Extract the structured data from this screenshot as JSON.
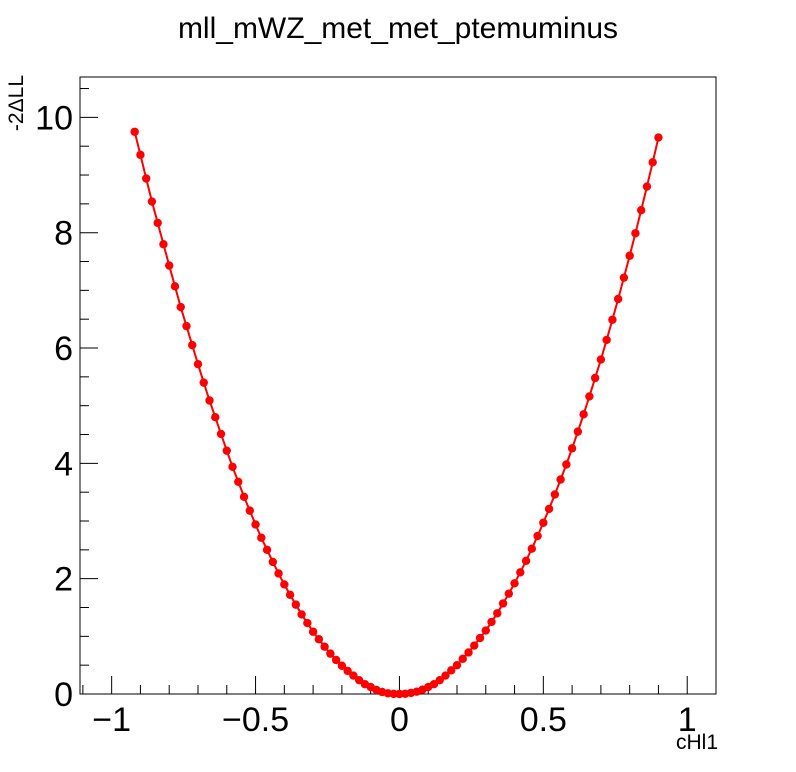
{
  "chart_data": {
    "type": "line",
    "title": "mll_mWZ_met_met_ptemuminus",
    "xlabel": "cHl1",
    "ylabel": "-2ΔLL",
    "xlim": [
      -1.11,
      1.1
    ],
    "ylim": [
      0,
      10.7
    ],
    "x_ticks": [
      {
        "value": -1,
        "label": "−1"
      },
      {
        "value": -0.5,
        "label": "−0.5"
      },
      {
        "value": 0,
        "label": "0"
      },
      {
        "value": 0.5,
        "label": "0.5"
      },
      {
        "value": 1,
        "label": "1"
      }
    ],
    "y_ticks": [
      {
        "value": 0,
        "label": "0"
      },
      {
        "value": 2,
        "label": "2"
      },
      {
        "value": 4,
        "label": "4"
      },
      {
        "value": 6,
        "label": "6"
      },
      {
        "value": 8,
        "label": "8"
      },
      {
        "value": 10,
        "label": "10"
      }
    ],
    "grid": false,
    "legend": "none",
    "series": [
      {
        "color": "#ff0000",
        "x": [
          -0.92,
          -0.9,
          -0.88,
          -0.86,
          -0.84,
          -0.82,
          -0.8,
          -0.78,
          -0.76,
          -0.74,
          -0.72,
          -0.7,
          -0.68,
          -0.66,
          -0.64,
          -0.62,
          -0.6,
          -0.58,
          -0.56,
          -0.54,
          -0.52,
          -0.5,
          -0.48,
          -0.46,
          -0.44,
          -0.42,
          -0.4,
          -0.38,
          -0.36,
          -0.34,
          -0.32,
          -0.3,
          -0.28,
          -0.26,
          -0.24,
          -0.22,
          -0.2,
          -0.18,
          -0.16,
          -0.14,
          -0.12,
          -0.1,
          -0.08,
          -0.06,
          -0.04,
          -0.02,
          0,
          0.02,
          0.04,
          0.06,
          0.08,
          0.1,
          0.12,
          0.14,
          0.16,
          0.18,
          0.2,
          0.22,
          0.24,
          0.26,
          0.28,
          0.3,
          0.32,
          0.34,
          0.36,
          0.38,
          0.4,
          0.42,
          0.44,
          0.46,
          0.48,
          0.5,
          0.52,
          0.54,
          0.56,
          0.58,
          0.6,
          0.62,
          0.64,
          0.66,
          0.68,
          0.7,
          0.72,
          0.74,
          0.76,
          0.78,
          0.8,
          0.82,
          0.84,
          0.86,
          0.88,
          0.9
        ],
        "y": [
          9.75,
          9.35,
          8.94,
          8.54,
          8.17,
          7.8,
          7.43,
          7.07,
          6.71,
          6.38,
          6.05,
          5.72,
          5.4,
          5.09,
          4.8,
          4.51,
          4.22,
          3.94,
          3.68,
          3.42,
          3.18,
          2.94,
          2.71,
          2.5,
          2.29,
          2.09,
          1.9,
          1.72,
          1.55,
          1.38,
          1.23,
          1.08,
          0.95,
          0.82,
          0.7,
          0.59,
          0.49,
          0.4,
          0.32,
          0.24,
          0.17,
          0.12,
          0.07,
          0.035,
          0.012,
          0.002,
          0,
          0.004,
          0.018,
          0.04,
          0.075,
          0.12,
          0.17,
          0.24,
          0.32,
          0.41,
          0.5,
          0.61,
          0.72,
          0.84,
          0.97,
          1.1,
          1.25,
          1.4,
          1.57,
          1.74,
          1.92,
          2.11,
          2.31,
          2.52,
          2.74,
          2.97,
          3.21,
          3.46,
          3.72,
          3.98,
          4.26,
          4.55,
          4.85,
          5.16,
          5.48,
          5.8,
          6.14,
          6.49,
          6.85,
          7.22,
          7.6,
          7.99,
          8.39,
          8.8,
          9.22,
          9.65
        ]
      }
    ]
  }
}
